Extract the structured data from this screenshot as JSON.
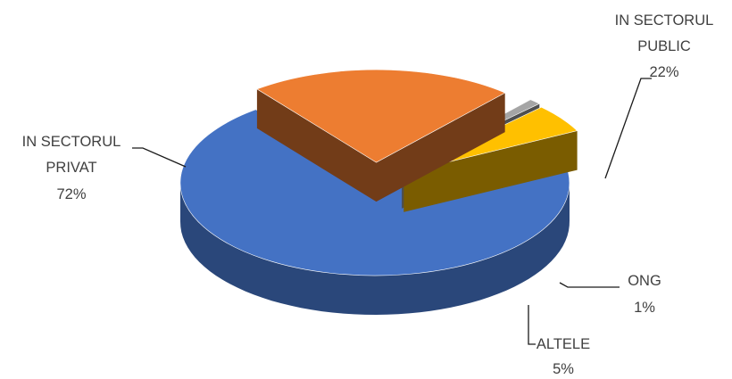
{
  "chart_data": {
    "type": "pie",
    "title": "",
    "three_d": true,
    "exploded": true,
    "slices": [
      {
        "name": "IN SECTORUL PRIVAT",
        "label_lines": [
          "IN SECTORUL",
          "PRIVAT"
        ],
        "value": 72,
        "value_label": "72%",
        "color": "#4472C4"
      },
      {
        "name": "IN SECTORUL PUBLIC",
        "label_lines": [
          "IN SECTORUL",
          "PUBLIC"
        ],
        "value": 22,
        "value_label": "22%",
        "color": "#ED7D31"
      },
      {
        "name": "ONG",
        "label_lines": [
          "ONG"
        ],
        "value": 1,
        "value_label": "1%",
        "color": "#A5A5A5"
      },
      {
        "name": "ALTELE",
        "label_lines": [
          "ALTELE"
        ],
        "value": 5,
        "value_label": "5%",
        "color": "#FFC000"
      }
    ]
  }
}
